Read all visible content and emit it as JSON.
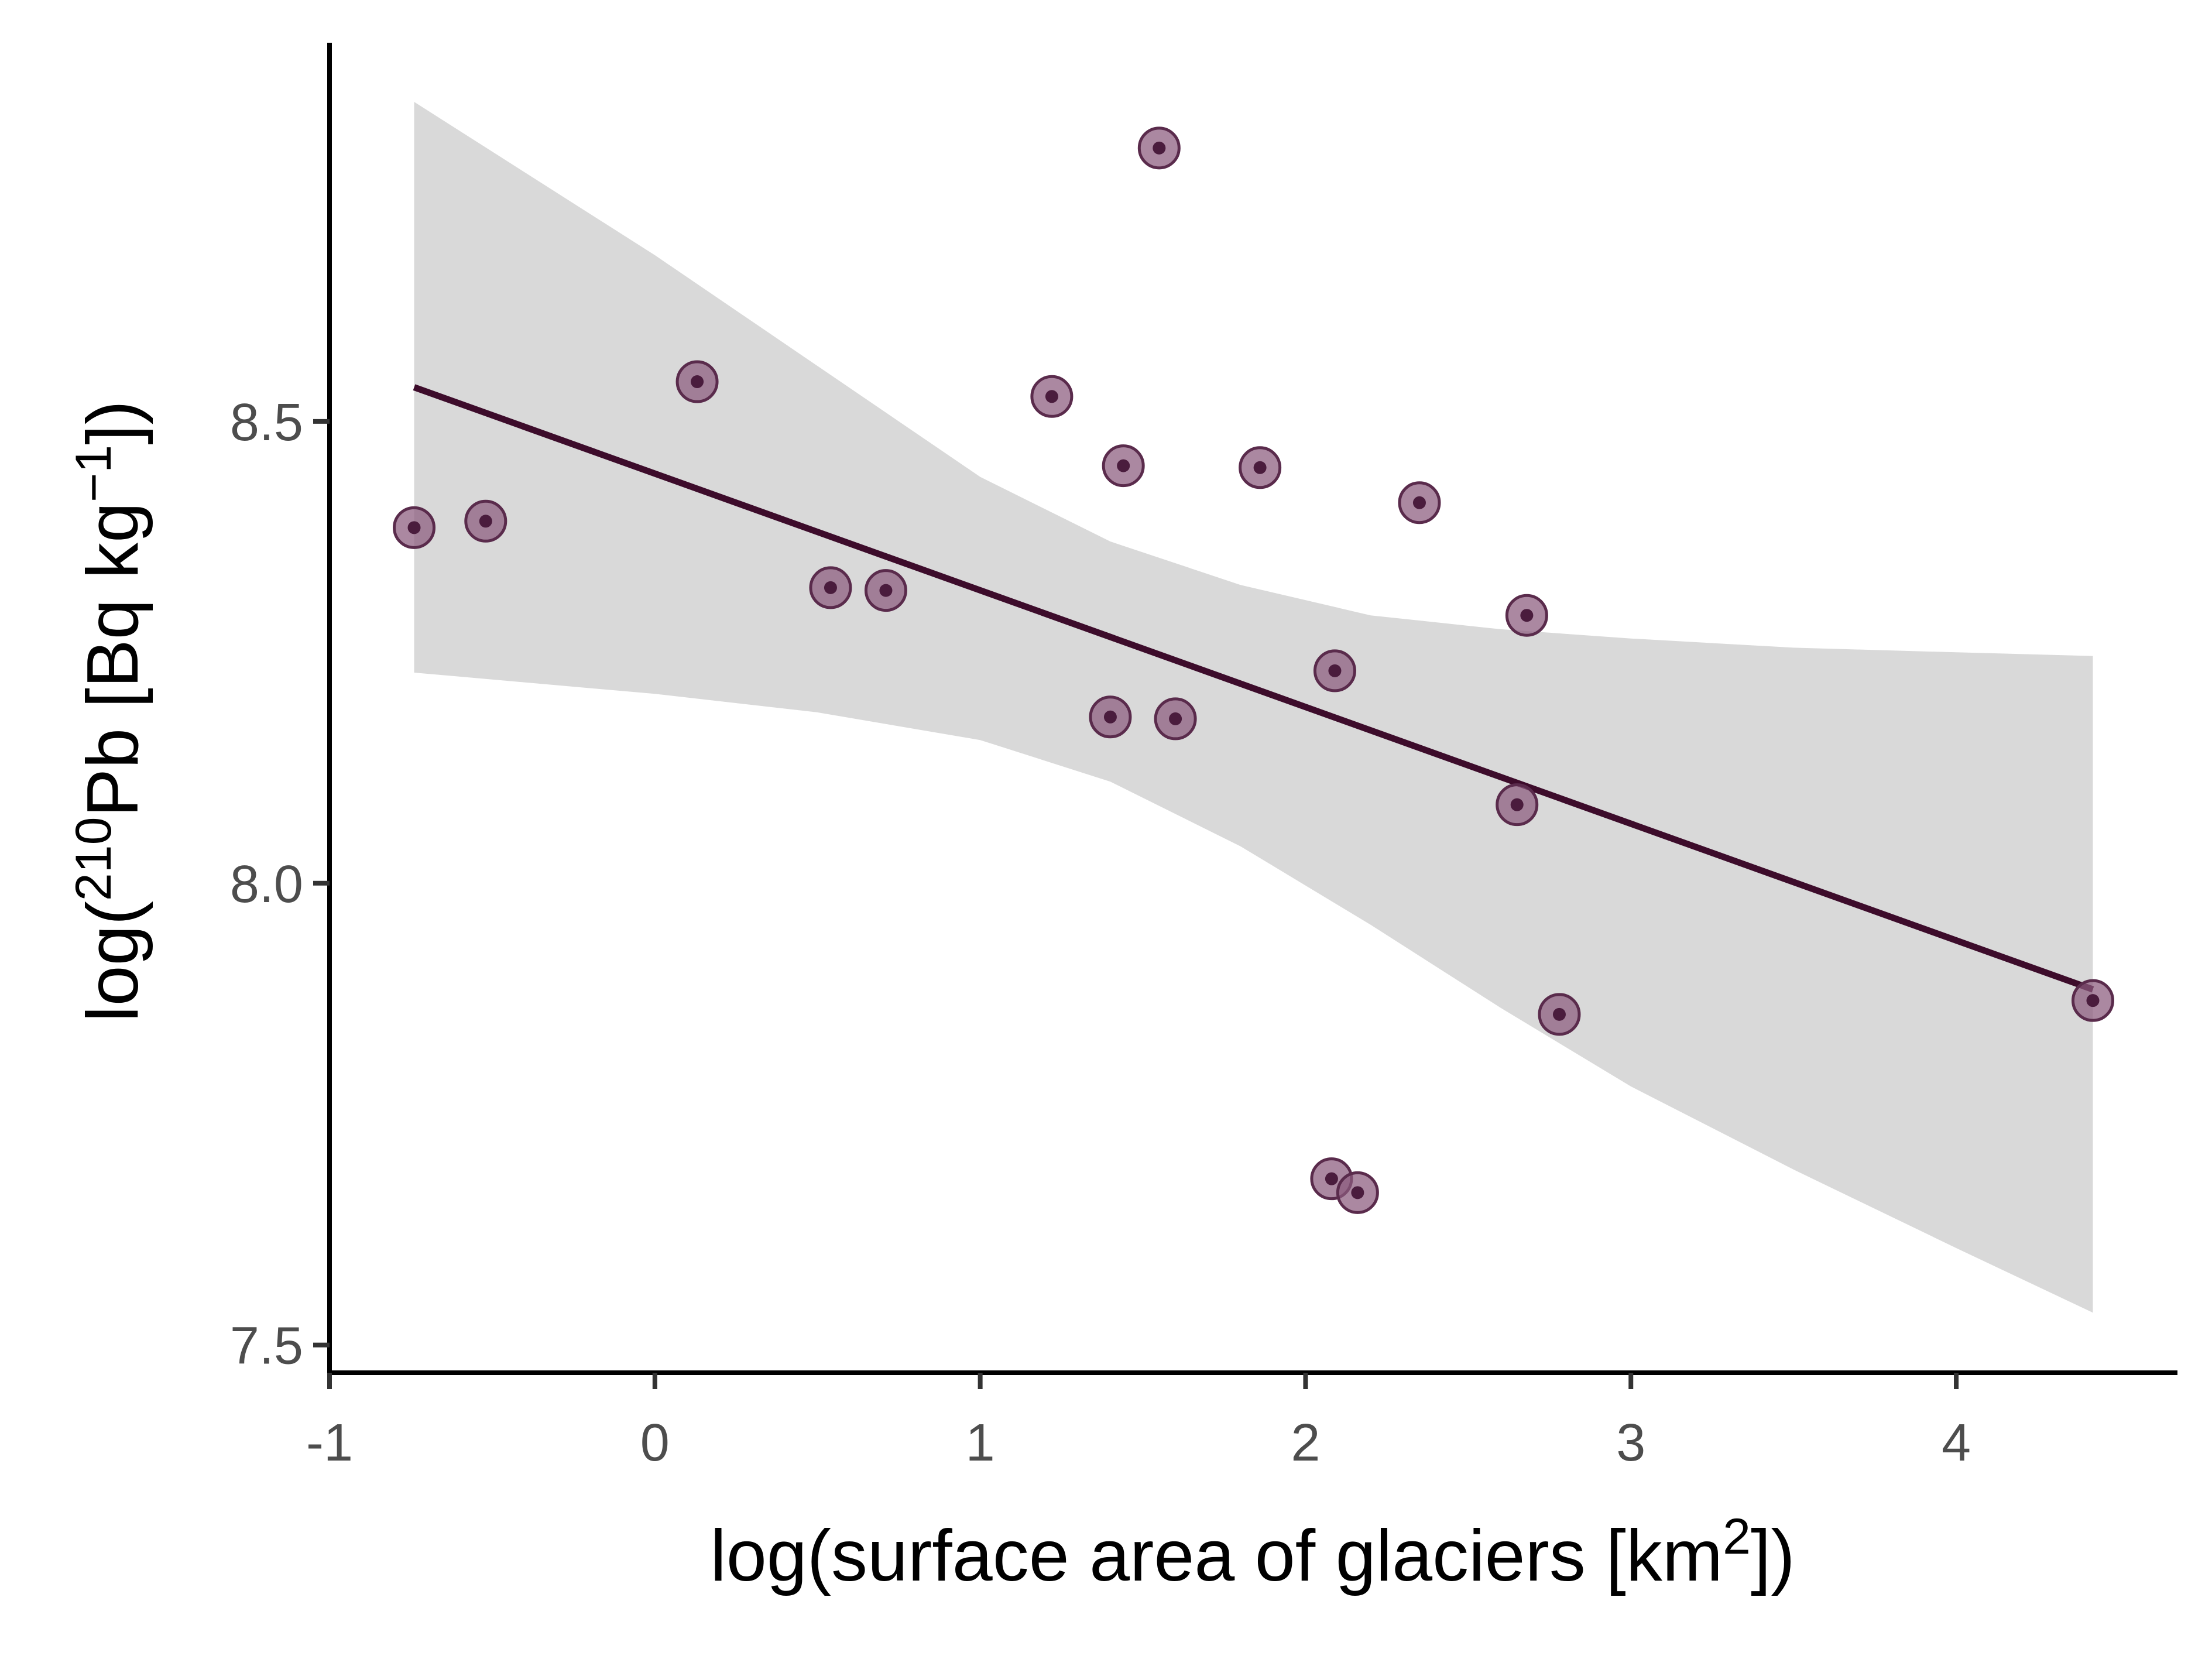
{
  "chart_data": {
    "type": "scatter",
    "title": "",
    "xlabel": {
      "prefix": "log(surface area of glaciers [km",
      "superscript": "2",
      "suffix": "])"
    },
    "ylabel": {
      "prefix": "log(",
      "superscript": "210",
      "middle": "Pb [Bq kg",
      "superscript2": "−1",
      "suffix": "])"
    },
    "xlim": [
      -1,
      4.68
    ],
    "ylim": [
      7.47,
      8.91
    ],
    "x_ticks": [
      -1,
      0,
      1,
      2,
      3,
      4
    ],
    "x_tick_labels": [
      "-1",
      "0",
      "1",
      "2",
      "3",
      "4"
    ],
    "y_ticks": [
      7.5,
      8.0,
      8.5
    ],
    "y_tick_labels": [
      "7.5",
      "8.0",
      "8.5"
    ],
    "grid": false,
    "legend": "none",
    "points": [
      {
        "x": -0.74,
        "y": 8.385
      },
      {
        "x": -0.52,
        "y": 8.392
      },
      {
        "x": 0.13,
        "y": 8.543
      },
      {
        "x": 0.54,
        "y": 8.32
      },
      {
        "x": 0.71,
        "y": 8.317
      },
      {
        "x": 1.22,
        "y": 8.527
      },
      {
        "x": 1.4,
        "y": 8.18
      },
      {
        "x": 1.44,
        "y": 8.452
      },
      {
        "x": 1.55,
        "y": 8.796
      },
      {
        "x": 1.6,
        "y": 8.178
      },
      {
        "x": 1.86,
        "y": 8.45
      },
      {
        "x": 2.08,
        "y": 7.68
      },
      {
        "x": 2.09,
        "y": 8.23
      },
      {
        "x": 2.16,
        "y": 7.665
      },
      {
        "x": 2.35,
        "y": 8.412
      },
      {
        "x": 2.65,
        "y": 8.085
      },
      {
        "x": 2.68,
        "y": 8.29
      },
      {
        "x": 2.78,
        "y": 7.858
      },
      {
        "x": 4.42,
        "y": 7.873
      }
    ],
    "regression_line": {
      "x": [
        -0.74,
        4.42
      ],
      "y": [
        8.537,
        7.885
      ]
    },
    "confidence_band": {
      "x": [
        -0.74,
        0.0,
        0.5,
        1.0,
        1.4,
        1.8,
        2.2,
        2.6,
        3.0,
        3.5,
        4.0,
        4.42
      ],
      "upper": [
        8.846,
        8.68,
        8.56,
        8.44,
        8.37,
        8.323,
        8.29,
        8.275,
        8.265,
        8.255,
        8.25,
        8.246
      ],
      "lower": [
        8.228,
        8.205,
        8.185,
        8.155,
        8.11,
        8.04,
        7.955,
        7.865,
        7.78,
        7.69,
        7.605,
        7.535
      ]
    },
    "colors": {
      "point_fill": "#8b5a7d",
      "point_stroke": "#5a2b4c",
      "point_center": "#4a1c3d",
      "line": "#3d0c2b",
      "band": "#d9d9d9",
      "axis": "#000000",
      "tick_label": "#4d4d4d"
    }
  }
}
